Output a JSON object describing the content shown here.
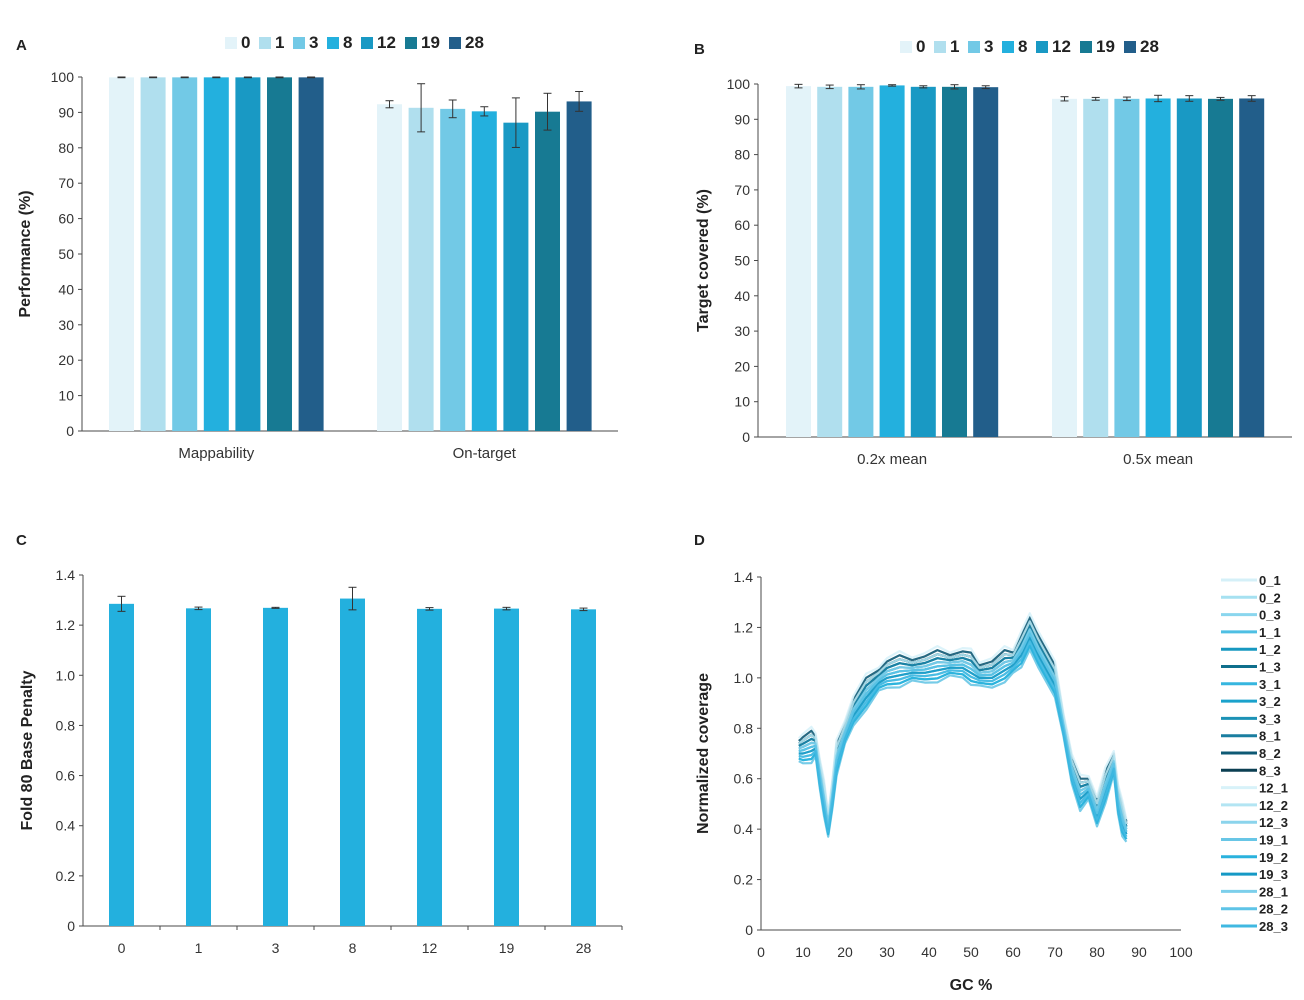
{
  "colors": {
    "palette7": [
      "#e3f3f9",
      "#b0dfee",
      "#72c9e6",
      "#23b0de",
      "#1999c4",
      "#177a93",
      "#225e8a"
    ],
    "panel_c_bar": "#23b0de",
    "axis": "#4a4a4a",
    "text": "#333333",
    "dmap": {
      "0_1": "#d5f0f8",
      "0_2": "#a6e1f1",
      "0_3": "#8ad6ee",
      "1_1": "#4ebfe3",
      "1_2": "#1798c0",
      "1_3": "#0f6f8c",
      "3_1": "#36b6df",
      "3_2": "#1aa2cc",
      "3_3": "#1c92b6",
      "8_1": "#1a7ea0",
      "8_2": "#0e5974",
      "8_3": "#0b3f52",
      "12_1": "#d8f2f9",
      "12_2": "#b3e5f3",
      "12_3": "#8bd4ec",
      "19_1": "#68c6e6",
      "19_2": "#2ab2dd",
      "19_3": "#1599c5",
      "28_1": "#7ccfeb",
      "28_2": "#5ec4e7",
      "28_3": "#40b8e1"
    }
  },
  "chart_data": [
    {
      "panel_label": "A",
      "type": "bar",
      "legend": [
        "0",
        "1",
        "3",
        "8",
        "12",
        "19",
        "28"
      ],
      "categories": [
        "Mappability",
        "On-target"
      ],
      "ylabel": "Performance (%)",
      "ylim": [
        0,
        100
      ],
      "yticks": [
        "0",
        "10",
        "20",
        "30",
        "40",
        "50",
        "60",
        "70",
        "80",
        "90",
        "100"
      ],
      "series": [
        {
          "name": "0",
          "values": [
            99.9,
            92.3
          ],
          "errors": [
            0.1,
            1.0
          ]
        },
        {
          "name": "1",
          "values": [
            99.9,
            91.3
          ],
          "errors": [
            0.1,
            6.8
          ]
        },
        {
          "name": "3",
          "values": [
            99.9,
            91.0
          ],
          "errors": [
            0.1,
            2.5
          ]
        },
        {
          "name": "8",
          "values": [
            99.9,
            90.3
          ],
          "errors": [
            0.1,
            1.3
          ]
        },
        {
          "name": "12",
          "values": [
            99.9,
            87.1
          ],
          "errors": [
            0.1,
            7.0
          ]
        },
        {
          "name": "19",
          "values": [
            99.9,
            90.2
          ],
          "errors": [
            0.1,
            5.2
          ]
        },
        {
          "name": "28",
          "values": [
            99.9,
            93.1
          ],
          "errors": [
            0.1,
            2.8
          ]
        }
      ]
    },
    {
      "panel_label": "B",
      "type": "bar",
      "legend": [
        "0",
        "1",
        "3",
        "8",
        "12",
        "19",
        "28"
      ],
      "categories": [
        "0.2x mean",
        "0.5x mean"
      ],
      "ylabel": "Target covered (%)",
      "ylim": [
        0,
        100
      ],
      "yticks": [
        "0",
        "10",
        "20",
        "30",
        "40",
        "50",
        "60",
        "70",
        "80",
        "90",
        "100"
      ],
      "series": [
        {
          "name": "0",
          "values": [
            99.4,
            95.8
          ],
          "errors": [
            0.5,
            0.6
          ]
        },
        {
          "name": "1",
          "values": [
            99.2,
            95.8
          ],
          "errors": [
            0.5,
            0.4
          ]
        },
        {
          "name": "3",
          "values": [
            99.2,
            95.8
          ],
          "errors": [
            0.6,
            0.5
          ]
        },
        {
          "name": "8",
          "values": [
            99.6,
            95.9
          ],
          "errors": [
            0.2,
            0.9
          ]
        },
        {
          "name": "12",
          "values": [
            99.2,
            95.9
          ],
          "errors": [
            0.3,
            0.8
          ]
        },
        {
          "name": "19",
          "values": [
            99.2,
            95.8
          ],
          "errors": [
            0.6,
            0.4
          ]
        },
        {
          "name": "28",
          "values": [
            99.1,
            95.9
          ],
          "errors": [
            0.4,
            0.8
          ]
        }
      ]
    },
    {
      "panel_label": "C",
      "type": "bar",
      "categories": [
        "0",
        "1",
        "3",
        "8",
        "12",
        "19",
        "28"
      ],
      "values": [
        1.285,
        1.267,
        1.269,
        1.306,
        1.265,
        1.266,
        1.263
      ],
      "errors": [
        0.03,
        0.005,
        0.002,
        0.045,
        0.005,
        0.005,
        0.005
      ],
      "ylabel": "Fold 80 Base Penalty",
      "ylim": [
        0,
        1.4
      ],
      "yticks": [
        "0",
        "0.2",
        "0.4",
        "0.6",
        "0.8",
        "1.0",
        "1.2",
        "1.4"
      ]
    },
    {
      "panel_label": "D",
      "type": "line",
      "xlabel": "GC %",
      "ylabel": "Normalized coverage",
      "xlim": [
        0,
        100
      ],
      "ylim": [
        0,
        1.4
      ],
      "xticks": [
        "0",
        "10",
        "20",
        "30",
        "40",
        "50",
        "60",
        "70",
        "80",
        "90",
        "100"
      ],
      "yticks": [
        "0",
        "0.2",
        "0.4",
        "0.6",
        "0.8",
        "1.0",
        "1.2",
        "1.4"
      ],
      "x": [
        9,
        10,
        12,
        13,
        14,
        15,
        16,
        17,
        18,
        20,
        22,
        25,
        28,
        30,
        33,
        36,
        39,
        42,
        45,
        48,
        50,
        52,
        55,
        58,
        60,
        62,
        64,
        66,
        68,
        70,
        72,
        74,
        76,
        78,
        80,
        82,
        84,
        85,
        86,
        87
      ],
      "base": [
        0.7,
        0.7,
        0.71,
        0.72,
        0.6,
        0.5,
        0.4,
        0.52,
        0.66,
        0.77,
        0.85,
        0.92,
        0.98,
        1.0,
        1.01,
        1.02,
        1.02,
        1.03,
        1.04,
        1.04,
        1.02,
        1.0,
        1.0,
        1.03,
        1.05,
        1.09,
        1.16,
        1.09,
        1.03,
        0.97,
        0.8,
        0.62,
        0.52,
        0.55,
        0.45,
        0.55,
        0.65,
        0.5,
        0.42,
        0.38
      ],
      "legend": [
        "0_1",
        "0_2",
        "0_3",
        "1_1",
        "1_2",
        "1_3",
        "3_1",
        "3_2",
        "3_3",
        "8_1",
        "8_2",
        "8_3",
        "12_1",
        "12_2",
        "12_3",
        "19_1",
        "19_2",
        "19_3",
        "28_1",
        "28_2",
        "28_3"
      ],
      "offsets": [
        0.01,
        0.02,
        -0.01,
        0.0,
        0.03,
        0.04,
        -0.02,
        0.01,
        0.02,
        0.03,
        0.05,
        0.04,
        0.06,
        0.04,
        0.0,
        -0.03,
        -0.02,
        0.0,
        0.02,
        0.01,
        -0.01
      ]
    }
  ]
}
